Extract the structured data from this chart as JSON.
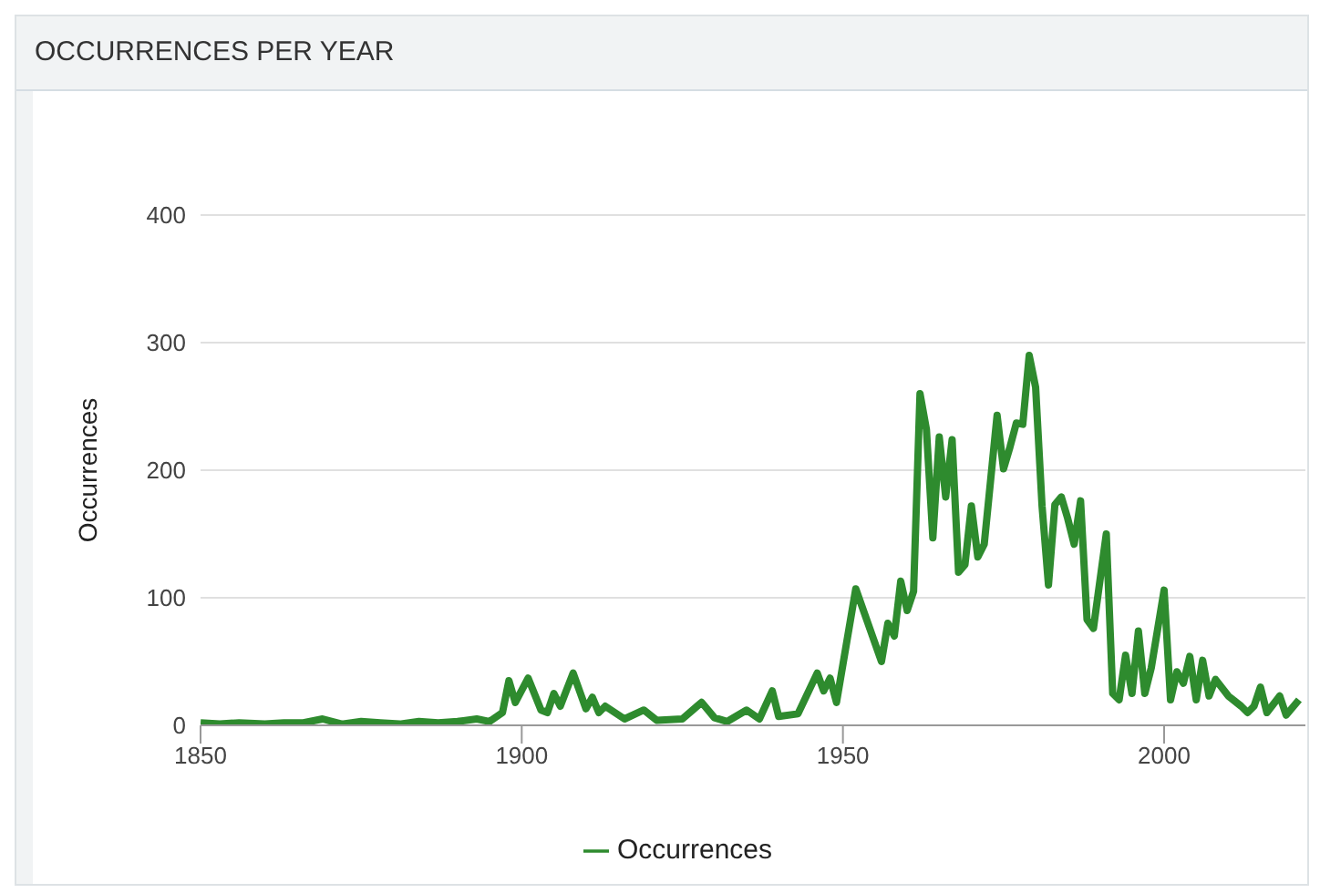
{
  "chart_data": {
    "type": "line",
    "title": "OCCURRENCES PER YEAR",
    "ylabel": "Occurrences",
    "x": [
      1850,
      1853,
      1856,
      1860,
      1863,
      1866,
      1869,
      1872,
      1875,
      1878,
      1881,
      1884,
      1887,
      1890,
      1893,
      1895,
      1897,
      1898,
      1899,
      1901,
      1903,
      1904,
      1905,
      1906,
      1908,
      1910,
      1911,
      1912,
      1913,
      1916,
      1919,
      1921,
      1925,
      1928,
      1930,
      1932,
      1935,
      1937,
      1939,
      1940,
      1943,
      1946,
      1947,
      1948,
      1949,
      1952,
      1956,
      1957,
      1958,
      1959,
      1960,
      1961,
      1962,
      1963,
      1964,
      1965,
      1966,
      1967,
      1968,
      1969,
      1970,
      1971,
      1972,
      1974,
      1975,
      1976,
      1977,
      1978,
      1979,
      1980,
      1981,
      1982,
      1983,
      1984,
      1985,
      1986,
      1987,
      1988,
      1989,
      1991,
      1992,
      1993,
      1994,
      1995,
      1996,
      1997,
      1998,
      2000,
      2001,
      2002,
      2003,
      2004,
      2005,
      2006,
      2007,
      2008,
      2010,
      2012,
      2013,
      2014,
      2015,
      2016,
      2018,
      2019,
      2021
    ],
    "series": [
      {
        "name": "Occurrences",
        "color": "#2e8b2e",
        "values": [
          2,
          1,
          2,
          1,
          2,
          2,
          5,
          1,
          3,
          2,
          1,
          3,
          2,
          3,
          5,
          3,
          10,
          35,
          18,
          37,
          12,
          10,
          25,
          15,
          41,
          13,
          22,
          10,
          15,
          5,
          12,
          4,
          5,
          18,
          6,
          3,
          12,
          5,
          27,
          7,
          9,
          41,
          27,
          37,
          18,
          107,
          50,
          80,
          70,
          113,
          90,
          105,
          260,
          232,
          147,
          226,
          179,
          224,
          120,
          126,
          172,
          132,
          142,
          243,
          201,
          218,
          237,
          236,
          290,
          265,
          172,
          110,
          173,
          179,
          162,
          142,
          176,
          83,
          76,
          150,
          25,
          20,
          55,
          25,
          74,
          25,
          45,
          106,
          20,
          42,
          33,
          54,
          20,
          51,
          23,
          36,
          23,
          15,
          10,
          15,
          30,
          10,
          23,
          8,
          20
        ]
      }
    ],
    "xlim": [
      1850,
      2022
    ],
    "xticks": [
      1850,
      1900,
      1950,
      2000
    ],
    "ylim": [
      0,
      400
    ],
    "yticks": [
      0,
      100,
      200,
      300,
      400
    ],
    "grid": "y",
    "legend": "bottom",
    "marker": "none",
    "line_style": "solid"
  }
}
